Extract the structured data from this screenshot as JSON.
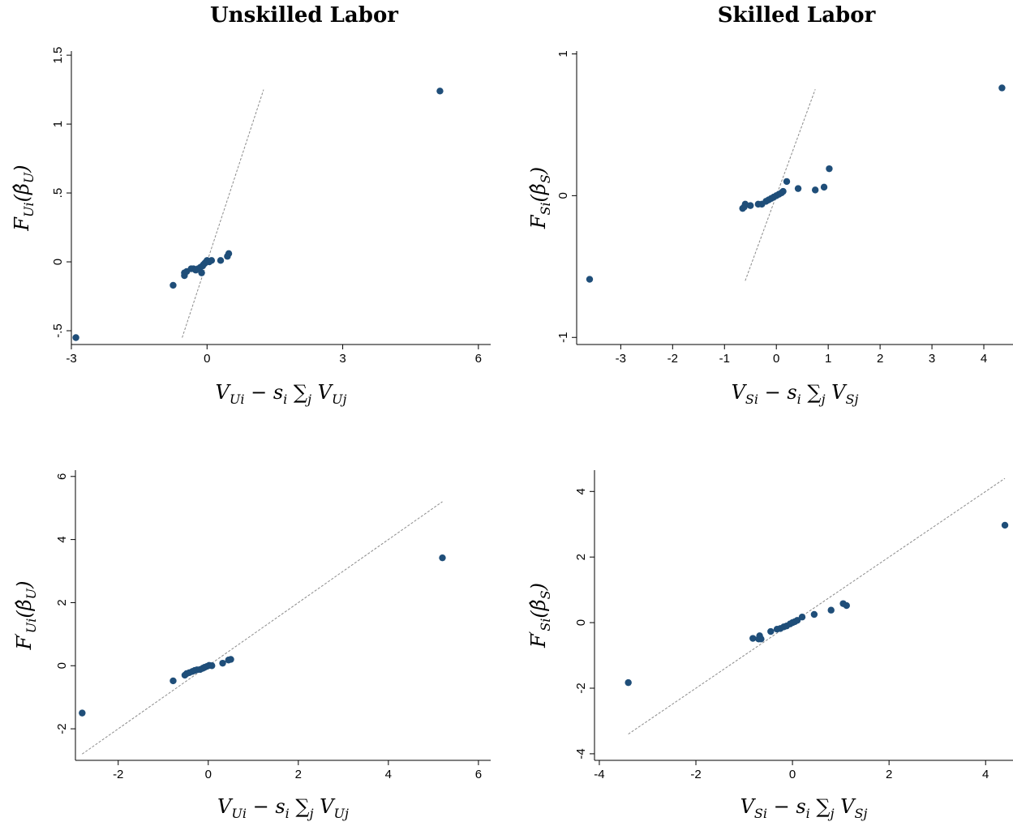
{
  "column_titles": [
    "Unskilled Labor",
    "Skilled Labor"
  ],
  "colors": {
    "points": "#1f4e79",
    "reference_line": "#8a8a8a",
    "axis": "#000000"
  },
  "chart_data": [
    {
      "type": "scatter",
      "title": "Unskilled Labor",
      "xlabel": {
        "main": "V",
        "sub": "Ui",
        "rest": " − s",
        "sub2": "i",
        "sum": " ∑",
        "sub3": "j",
        "tail": " V",
        "sub4": "Uj"
      },
      "ylabel": {
        "main": "F",
        "sub": "Ui",
        "sup": "",
        "arg": "(β̂",
        "argsub": "U",
        "close": ")"
      },
      "xlim": [
        -3,
        6.2
      ],
      "ylim": [
        -0.6,
        1.53
      ],
      "xticks": [
        -3,
        0,
        3,
        6
      ],
      "xtick_labels": [
        "-3",
        "0",
        "3",
        "6"
      ],
      "yticks": [
        -0.5,
        0,
        0.5,
        1,
        1.5
      ],
      "ytick_labels": [
        "-.5",
        "0",
        ".5",
        "1",
        "1.5"
      ],
      "ref_line": {
        "x": [
          -0.55,
          1.25
        ],
        "y": [
          -0.55,
          1.25
        ]
      },
      "x": [
        -2.9,
        5.15,
        -0.75,
        -0.5,
        -0.5,
        -0.45,
        -0.35,
        -0.3,
        -0.25,
        -0.2,
        -0.15,
        -0.12,
        -0.1,
        -0.08,
        -0.05,
        -0.02,
        0.0,
        0.05,
        0.1,
        0.3,
        0.45,
        0.48
      ],
      "y": [
        -0.55,
        1.24,
        -0.17,
        -0.1,
        -0.08,
        -0.07,
        -0.05,
        -0.05,
        -0.06,
        -0.05,
        -0.04,
        -0.08,
        -0.03,
        -0.02,
        -0.01,
        0.0,
        0.01,
        0.0,
        0.01,
        0.01,
        0.04,
        0.06
      ]
    },
    {
      "type": "scatter",
      "title": "Skilled Labor",
      "xlabel": {
        "main": "V",
        "sub": "Si",
        "rest": " − s",
        "sub2": "i",
        "sum": " ∑",
        "sub3": "j",
        "tail": " V",
        "sub4": "Sj"
      },
      "ylabel": {
        "main": "F",
        "sub": "Si",
        "sup": "",
        "arg": "(β̂",
        "argsub": "S",
        "close": ")"
      },
      "xlim": [
        -3.85,
        4.5
      ],
      "ylim": [
        -1.05,
        1.02
      ],
      "xticks": [
        -3,
        -2,
        -1,
        0,
        1,
        2,
        3,
        4
      ],
      "xtick_labels": [
        "-3",
        "-2",
        "-1",
        "0",
        "1",
        "2",
        "3",
        "4"
      ],
      "yticks": [
        -1,
        0,
        1
      ],
      "ytick_labels": [
        "-1",
        "0",
        "1"
      ],
      "ref_line": {
        "x": [
          -0.6,
          0.75
        ],
        "y": [
          -0.6,
          0.75
        ]
      },
      "x": [
        -3.6,
        4.35,
        -0.65,
        -0.62,
        -0.6,
        -0.5,
        -0.35,
        -0.28,
        -0.2,
        -0.15,
        -0.1,
        -0.05,
        0.0,
        0.05,
        0.1,
        0.13,
        0.2,
        0.42,
        0.75,
        0.92,
        1.02
      ],
      "y": [
        -0.59,
        0.76,
        -0.09,
        -0.08,
        -0.06,
        -0.07,
        -0.06,
        -0.06,
        -0.04,
        -0.03,
        -0.02,
        -0.01,
        0.0,
        0.01,
        0.02,
        0.03,
        0.1,
        0.05,
        0.04,
        0.06,
        0.19
      ]
    },
    {
      "type": "scatter",
      "title": "",
      "xlabel": {
        "main": "V",
        "sub": "Ui",
        "rest": " − s",
        "sub2": "i",
        "sum": " ∑",
        "sub3": "j",
        "tail": " V",
        "sub4": "Uj"
      },
      "ylabel": {
        "main": "F",
        "sub": "Ui",
        "sup": "′",
        "arg": "(β̂",
        "argsub": "U",
        "close": ")"
      },
      "xlim": [
        -2.95,
        6.2
      ],
      "ylim": [
        -3.0,
        6.2
      ],
      "xticks": [
        -2,
        0,
        2,
        4,
        6
      ],
      "xtick_labels": [
        "-2",
        "0",
        "2",
        "4",
        "6"
      ],
      "yticks": [
        -2,
        0,
        2,
        4,
        6
      ],
      "ytick_labels": [
        "-2",
        "0",
        "2",
        "4",
        "6"
      ],
      "ref_line": {
        "x": [
          -2.8,
          5.2
        ],
        "y": [
          -2.8,
          5.2
        ]
      },
      "x": [
        -2.8,
        5.2,
        -0.78,
        -0.52,
        -0.48,
        -0.42,
        -0.35,
        -0.3,
        -0.25,
        -0.18,
        -0.12,
        -0.08,
        -0.03,
        0.02,
        0.08,
        0.32,
        0.45,
        0.5
      ],
      "y": [
        -1.5,
        3.42,
        -0.48,
        -0.3,
        -0.25,
        -0.22,
        -0.18,
        -0.15,
        -0.13,
        -0.12,
        -0.08,
        -0.05,
        -0.02,
        0.01,
        0.0,
        0.08,
        0.18,
        0.2
      ]
    },
    {
      "type": "scatter",
      "title": "",
      "xlabel": {
        "main": "V",
        "sub": "Si",
        "rest": " − s",
        "sub2": "i",
        "sum": " ∑",
        "sub3": "j",
        "tail": " V",
        "sub4": "Sj"
      },
      "ylabel": {
        "main": "F",
        "sub": "Si",
        "sup": "′",
        "arg": "(β̂",
        "argsub": "S",
        "close": ")"
      },
      "xlim": [
        -4.1,
        4.5
      ],
      "ylim": [
        -4.2,
        4.65
      ],
      "xticks": [
        -4,
        -2,
        0,
        2,
        4
      ],
      "xtick_labels": [
        "-4",
        "-2",
        "0",
        "2",
        "4"
      ],
      "yticks": [
        -4,
        -2,
        0,
        2,
        4
      ],
      "ytick_labels": [
        "-4",
        "-2",
        "0",
        "2",
        "4"
      ],
      "ref_line": {
        "x": [
          -3.4,
          4.4
        ],
        "y": [
          -3.4,
          4.4
        ]
      },
      "x": [
        -3.4,
        4.4,
        -0.82,
        -0.7,
        -0.68,
        -0.65,
        -0.45,
        -0.32,
        -0.25,
        -0.18,
        -0.12,
        -0.05,
        0.0,
        0.05,
        0.1,
        0.2,
        0.45,
        0.8,
        1.05,
        1.12
      ],
      "y": [
        -1.83,
        2.97,
        -0.48,
        -0.5,
        -0.4,
        -0.5,
        -0.27,
        -0.2,
        -0.18,
        -0.13,
        -0.1,
        -0.04,
        0.0,
        0.03,
        0.07,
        0.17,
        0.25,
        0.38,
        0.58,
        0.52
      ]
    }
  ]
}
